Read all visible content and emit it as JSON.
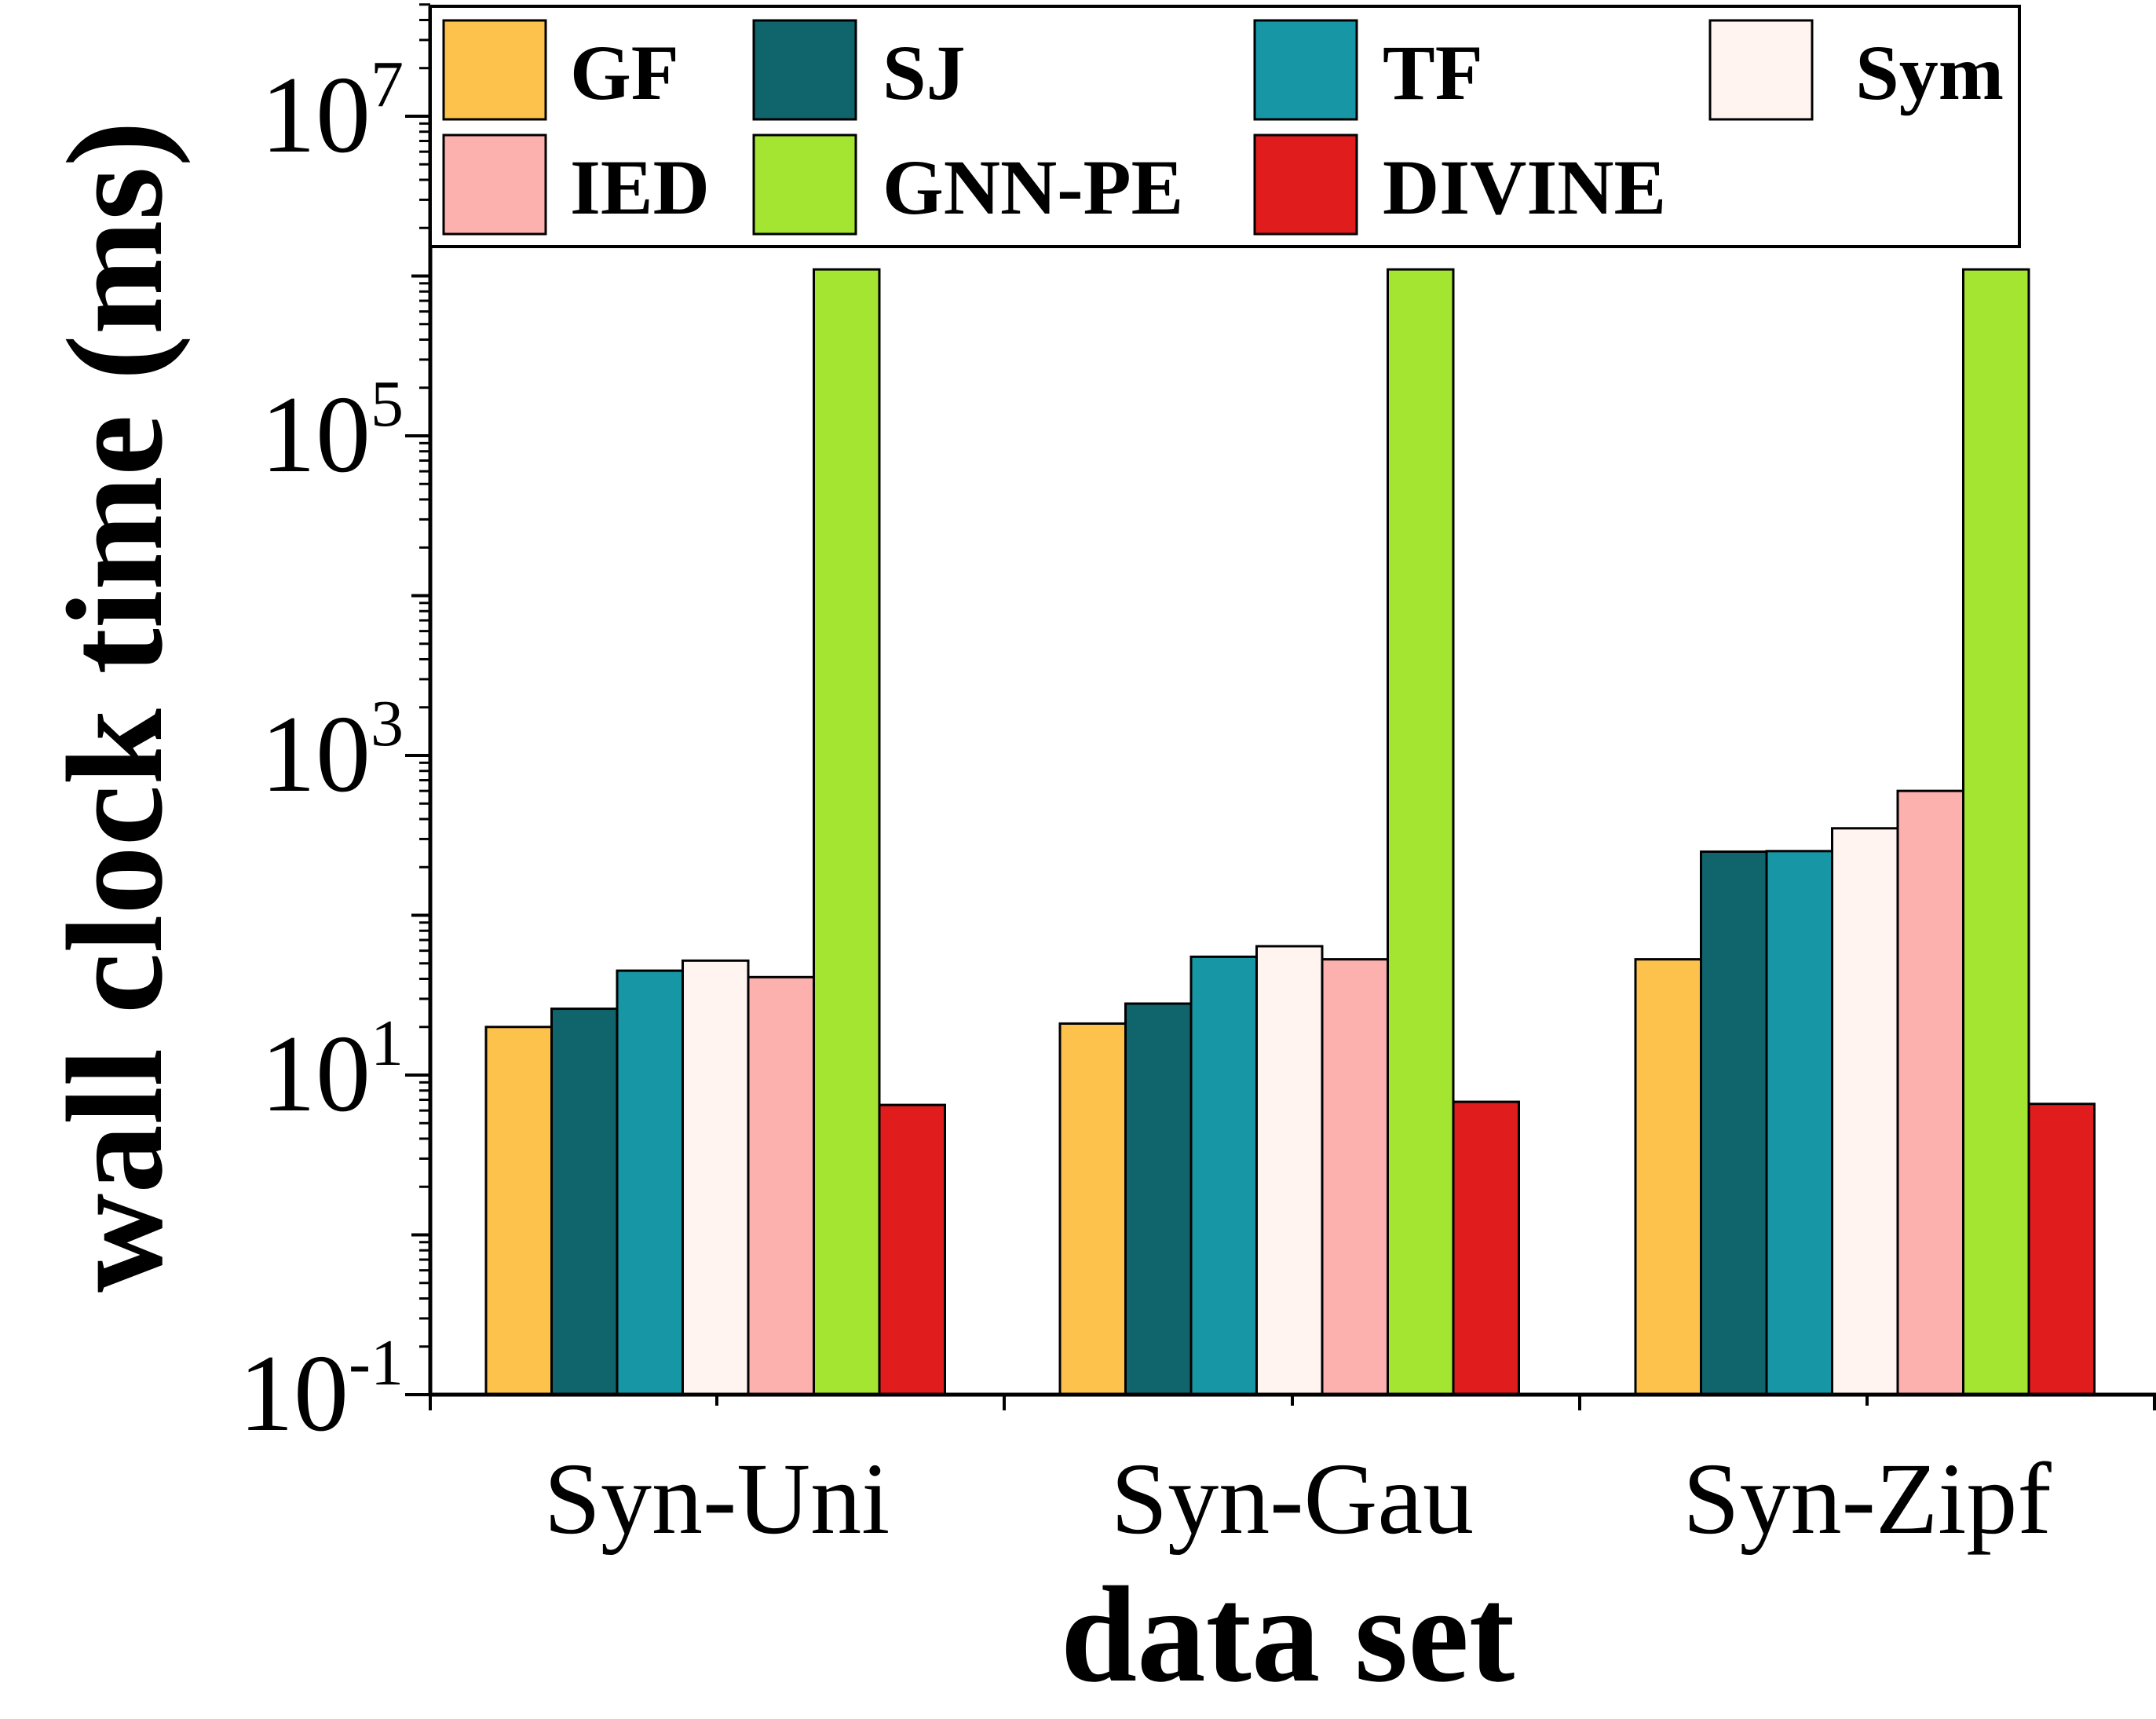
{
  "chart_data": {
    "type": "bar",
    "title": "",
    "xlabel": "data set",
    "ylabel": "wall clock time (ms)",
    "yscale": "log",
    "ylim": [
      0.1,
      60000000
    ],
    "yticks": [
      {
        "value": 0.1,
        "base": "10",
        "exp": "-1"
      },
      {
        "value": 10,
        "base": "10",
        "exp": "1"
      },
      {
        "value": 1000,
        "base": "10",
        "exp": "3"
      },
      {
        "value": 100000,
        "base": "10",
        "exp": "5"
      },
      {
        "value": 10000000,
        "base": "10",
        "exp": "7"
      }
    ],
    "categories": [
      "Syn-Uni",
      "Syn-Gau",
      "Syn-Zipf"
    ],
    "legend_position": "top",
    "series": [
      {
        "name": "GF",
        "color": "#FCC24C",
        "values": [
          20,
          21,
          53
        ]
      },
      {
        "name": "SJ",
        "color": "#10646C",
        "values": [
          26,
          28,
          250
        ]
      },
      {
        "name": "TF",
        "color": "#1797A6",
        "values": [
          45,
          55,
          252
        ]
      },
      {
        "name": "Sym",
        "color": "#FFF4F0",
        "values": [
          52,
          64,
          350
        ]
      },
      {
        "name": "IED",
        "color": "#FDB1AE",
        "values": [
          41,
          53,
          600
        ]
      },
      {
        "name": "GNN-PE",
        "color": "#A4E532",
        "values": [
          1100000,
          1100000,
          1100000
        ]
      },
      {
        "name": "DIVINE",
        "color": "#E01C1C",
        "values": [
          6.5,
          6.8,
          6.6
        ]
      }
    ]
  }
}
